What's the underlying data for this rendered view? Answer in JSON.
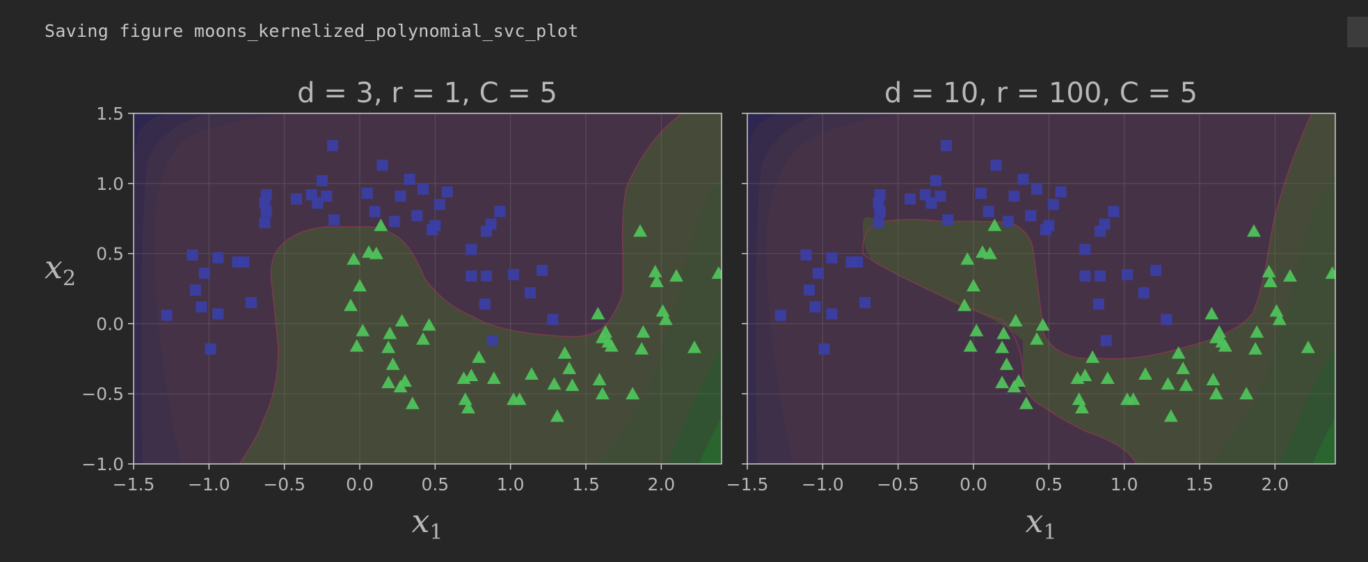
{
  "output": {
    "text": "Saving figure moons_kernelized_polynomial_svc_plot"
  },
  "colors": {
    "class0_marker": "#3a3fa8",
    "class1_marker": "#4fc25a",
    "region_class0": "#463246",
    "region_class1": "#464a38",
    "background": "#262626",
    "text": "#b8b8b8"
  },
  "chart_data": [
    {
      "type": "scatter",
      "title": "d = 3, r = 1, C = 5",
      "xlabel": "x",
      "xlabel_sub": "1",
      "ylabel": "x",
      "ylabel_sub": "2",
      "xlim": [
        -1.5,
        2.4
      ],
      "ylim": [
        -1.0,
        1.5
      ],
      "xticks": [
        "−1.5",
        "−1.0",
        "−0.5",
        "0.0",
        "0.5",
        "1.0",
        "1.5",
        "2.0"
      ],
      "yticks": [
        "−1.0",
        "−0.5",
        "0.0",
        "0.5",
        "1.0",
        "1.5"
      ],
      "grid": true,
      "series": [
        {
          "marker": "square",
          "points": [
            [
              -0.18,
              1.27
            ],
            [
              0.15,
              1.13
            ],
            [
              0.33,
              1.03
            ],
            [
              0.42,
              0.96
            ],
            [
              0.58,
              0.94
            ],
            [
              0.27,
              0.91
            ],
            [
              0.05,
              0.93
            ],
            [
              -0.25,
              1.02
            ],
            [
              -0.32,
              0.92
            ],
            [
              -0.28,
              0.86
            ],
            [
              -0.22,
              0.91
            ],
            [
              -0.42,
              0.89
            ],
            [
              -0.62,
              0.92
            ],
            [
              -0.63,
              0.86
            ],
            [
              -0.62,
              0.8
            ],
            [
              -0.63,
              0.72
            ],
            [
              0.53,
              0.85
            ],
            [
              0.38,
              0.77
            ],
            [
              0.1,
              0.8
            ],
            [
              -0.17,
              0.74
            ],
            [
              0.23,
              0.73
            ],
            [
              0.5,
              0.7
            ],
            [
              0.48,
              0.67
            ],
            [
              0.93,
              0.8
            ],
            [
              0.87,
              0.71
            ],
            [
              0.84,
              0.66
            ],
            [
              0.74,
              0.53
            ],
            [
              -1.11,
              0.49
            ],
            [
              -0.94,
              0.47
            ],
            [
              -0.81,
              0.44
            ],
            [
              -0.77,
              0.44
            ],
            [
              -1.03,
              0.36
            ],
            [
              -1.09,
              0.24
            ],
            [
              -0.72,
              0.15
            ],
            [
              -1.05,
              0.12
            ],
            [
              -0.94,
              0.07
            ],
            [
              -1.28,
              0.06
            ],
            [
              -0.99,
              -0.18
            ],
            [
              0.74,
              0.34
            ],
            [
              0.84,
              0.34
            ],
            [
              1.02,
              0.35
            ],
            [
              1.21,
              0.38
            ],
            [
              1.13,
              0.22
            ],
            [
              0.83,
              0.14
            ],
            [
              1.28,
              0.03
            ],
            [
              0.88,
              -0.12
            ]
          ]
        },
        {
          "marker": "triangle",
          "points": [
            [
              0.14,
              0.7
            ],
            [
              1.86,
              0.66
            ],
            [
              0.06,
              0.51
            ],
            [
              0.11,
              0.5
            ],
            [
              -0.04,
              0.46
            ],
            [
              1.96,
              0.37
            ],
            [
              2.1,
              0.34
            ],
            [
              2.38,
              0.36
            ],
            [
              1.97,
              0.3
            ],
            [
              0.0,
              0.27
            ],
            [
              -0.06,
              0.13
            ],
            [
              1.58,
              0.07
            ],
            [
              2.01,
              0.09
            ],
            [
              2.03,
              0.03
            ],
            [
              0.28,
              0.02
            ],
            [
              0.46,
              -0.01
            ],
            [
              0.02,
              -0.05
            ],
            [
              0.2,
              -0.07
            ],
            [
              1.63,
              -0.06
            ],
            [
              1.88,
              -0.06
            ],
            [
              0.42,
              -0.11
            ],
            [
              1.61,
              -0.1
            ],
            [
              1.65,
              -0.13
            ],
            [
              -0.02,
              -0.16
            ],
            [
              0.19,
              -0.17
            ],
            [
              1.67,
              -0.16
            ],
            [
              1.87,
              -0.18
            ],
            [
              2.22,
              -0.17
            ],
            [
              1.36,
              -0.21
            ],
            [
              0.79,
              -0.24
            ],
            [
              0.22,
              -0.29
            ],
            [
              1.39,
              -0.32
            ],
            [
              0.3,
              -0.41
            ],
            [
              0.19,
              -0.42
            ],
            [
              0.27,
              -0.45
            ],
            [
              0.69,
              -0.39
            ],
            [
              0.74,
              -0.37
            ],
            [
              0.89,
              -0.39
            ],
            [
              1.14,
              -0.36
            ],
            [
              1.59,
              -0.4
            ],
            [
              1.29,
              -0.43
            ],
            [
              1.41,
              -0.44
            ],
            [
              1.61,
              -0.5
            ],
            [
              1.81,
              -0.5
            ],
            [
              0.7,
              -0.54
            ],
            [
              1.02,
              -0.54
            ],
            [
              1.06,
              -0.54
            ],
            [
              0.35,
              -0.57
            ],
            [
              0.72,
              -0.6
            ],
            [
              1.31,
              -0.66
            ]
          ]
        }
      ]
    },
    {
      "type": "scatter",
      "title": "d = 10, r = 100, C = 5",
      "xlabel": "x",
      "xlabel_sub": "1",
      "xlim": [
        -1.5,
        2.4
      ],
      "ylim": [
        -1.0,
        1.5
      ],
      "xticks": [
        "−1.5",
        "−1.0",
        "−0.5",
        "0.0",
        "0.5",
        "1.0",
        "1.5",
        "2.0"
      ],
      "grid": true,
      "series": [
        {
          "marker": "square",
          "points": [
            [
              -0.18,
              1.27
            ],
            [
              0.15,
              1.13
            ],
            [
              0.33,
              1.03
            ],
            [
              0.42,
              0.96
            ],
            [
              0.58,
              0.94
            ],
            [
              0.27,
              0.91
            ],
            [
              0.05,
              0.93
            ],
            [
              -0.25,
              1.02
            ],
            [
              -0.32,
              0.92
            ],
            [
              -0.28,
              0.86
            ],
            [
              -0.22,
              0.91
            ],
            [
              -0.42,
              0.89
            ],
            [
              -0.62,
              0.92
            ],
            [
              -0.63,
              0.86
            ],
            [
              -0.62,
              0.8
            ],
            [
              -0.63,
              0.72
            ],
            [
              0.53,
              0.85
            ],
            [
              0.38,
              0.77
            ],
            [
              0.1,
              0.8
            ],
            [
              -0.17,
              0.74
            ],
            [
              0.23,
              0.73
            ],
            [
              0.5,
              0.7
            ],
            [
              0.48,
              0.67
            ],
            [
              0.93,
              0.8
            ],
            [
              0.87,
              0.71
            ],
            [
              0.84,
              0.66
            ],
            [
              0.74,
              0.53
            ],
            [
              -1.11,
              0.49
            ],
            [
              -0.94,
              0.47
            ],
            [
              -0.81,
              0.44
            ],
            [
              -0.77,
              0.44
            ],
            [
              -1.03,
              0.36
            ],
            [
              -1.09,
              0.24
            ],
            [
              -0.72,
              0.15
            ],
            [
              -1.05,
              0.12
            ],
            [
              -0.94,
              0.07
            ],
            [
              -1.28,
              0.06
            ],
            [
              -0.99,
              -0.18
            ],
            [
              0.74,
              0.34
            ],
            [
              0.84,
              0.34
            ],
            [
              1.02,
              0.35
            ],
            [
              1.21,
              0.38
            ],
            [
              1.13,
              0.22
            ],
            [
              0.83,
              0.14
            ],
            [
              1.28,
              0.03
            ],
            [
              0.88,
              -0.12
            ]
          ]
        },
        {
          "marker": "triangle",
          "points": [
            [
              0.14,
              0.7
            ],
            [
              1.86,
              0.66
            ],
            [
              0.06,
              0.51
            ],
            [
              0.11,
              0.5
            ],
            [
              -0.04,
              0.46
            ],
            [
              1.96,
              0.37
            ],
            [
              2.1,
              0.34
            ],
            [
              2.38,
              0.36
            ],
            [
              1.97,
              0.3
            ],
            [
              0.0,
              0.27
            ],
            [
              -0.06,
              0.13
            ],
            [
              1.58,
              0.07
            ],
            [
              2.01,
              0.09
            ],
            [
              2.03,
              0.03
            ],
            [
              0.28,
              0.02
            ],
            [
              0.46,
              -0.01
            ],
            [
              0.02,
              -0.05
            ],
            [
              0.2,
              -0.07
            ],
            [
              1.63,
              -0.06
            ],
            [
              1.88,
              -0.06
            ],
            [
              0.42,
              -0.11
            ],
            [
              1.61,
              -0.1
            ],
            [
              1.65,
              -0.13
            ],
            [
              -0.02,
              -0.16
            ],
            [
              0.19,
              -0.17
            ],
            [
              1.67,
              -0.16
            ],
            [
              1.87,
              -0.18
            ],
            [
              2.22,
              -0.17
            ],
            [
              1.36,
              -0.21
            ],
            [
              0.79,
              -0.24
            ],
            [
              0.22,
              -0.29
            ],
            [
              1.39,
              -0.32
            ],
            [
              0.3,
              -0.41
            ],
            [
              0.19,
              -0.42
            ],
            [
              0.27,
              -0.45
            ],
            [
              0.69,
              -0.39
            ],
            [
              0.74,
              -0.37
            ],
            [
              0.89,
              -0.39
            ],
            [
              1.14,
              -0.36
            ],
            [
              1.59,
              -0.4
            ],
            [
              1.29,
              -0.43
            ],
            [
              1.41,
              -0.44
            ],
            [
              1.61,
              -0.5
            ],
            [
              1.81,
              -0.5
            ],
            [
              0.7,
              -0.54
            ],
            [
              1.02,
              -0.54
            ],
            [
              1.06,
              -0.54
            ],
            [
              0.35,
              -0.57
            ],
            [
              0.72,
              -0.6
            ],
            [
              1.31,
              -0.66
            ]
          ]
        }
      ]
    }
  ]
}
